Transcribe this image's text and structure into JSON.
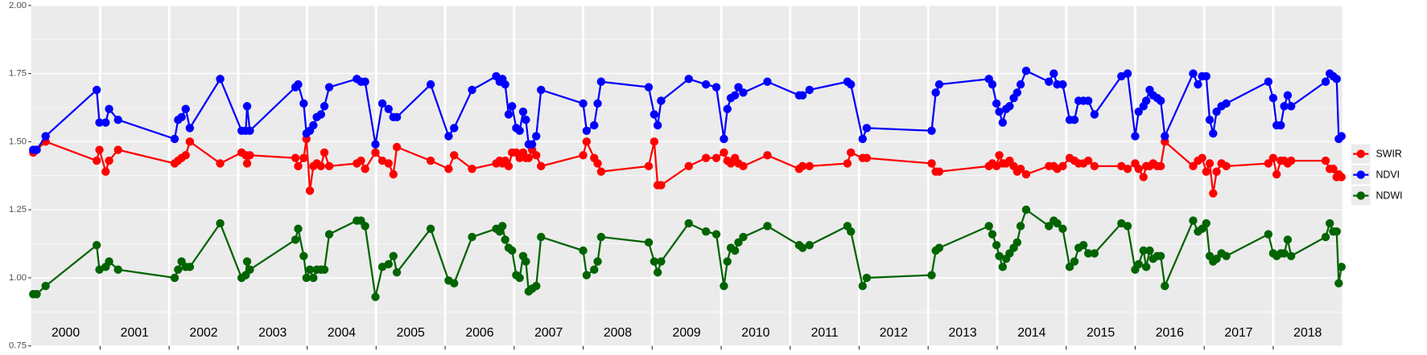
{
  "chart_data": {
    "type": "line",
    "x": [
      2000.03,
      2000.08,
      2000.21,
      2000.95,
      2000.99,
      2001.08,
      2001.13,
      2001.26,
      2002.08,
      2002.13,
      2002.18,
      2002.24,
      2002.3,
      2002.74,
      2003.05,
      2003.11,
      2003.13,
      2003.17,
      2003.83,
      2003.87,
      2003.95,
      2003.99,
      2004.04,
      2004.09,
      2004.14,
      2004.2,
      2004.25,
      2004.32,
      2004.72,
      2004.78,
      2004.84,
      2004.99,
      2005.09,
      2005.18,
      2005.25,
      2005.3,
      2005.79,
      2006.05,
      2006.13,
      2006.39,
      2006.74,
      2006.79,
      2006.83,
      2006.87,
      2006.92,
      2006.97,
      2007.03,
      2007.08,
      2007.13,
      2007.17,
      2007.21,
      2007.26,
      2007.32,
      2007.39,
      2008.0,
      2008.05,
      2008.16,
      2008.21,
      2008.26,
      2008.95,
      2009.03,
      2009.08,
      2009.13,
      2009.53,
      2009.78,
      2009.93,
      2010.04,
      2010.09,
      2010.14,
      2010.2,
      2010.25,
      2010.32,
      2010.67,
      2011.13,
      2011.18,
      2011.28,
      2011.83,
      2011.88,
      2012.05,
      2012.11,
      2013.05,
      2013.11,
      2013.16,
      2013.88,
      2013.93,
      2013.99,
      2014.03,
      2014.08,
      2014.13,
      2014.18,
      2014.24,
      2014.29,
      2014.34,
      2014.42,
      2014.75,
      2014.82,
      2014.87,
      2014.95,
      2015.05,
      2015.12,
      2015.18,
      2015.25,
      2015.32,
      2015.41,
      2015.8,
      2015.89,
      2016.0,
      2016.05,
      2016.12,
      2016.16,
      2016.21,
      2016.26,
      2016.32,
      2016.37,
      2016.43,
      2016.84,
      2016.91,
      2016.97,
      2017.03,
      2017.08,
      2017.13,
      2017.18,
      2017.25,
      2017.32,
      2017.93,
      2018.0,
      2018.05,
      2018.11,
      2018.16,
      2018.21,
      2018.26,
      2018.76,
      2018.82,
      2018.87,
      2018.92,
      2018.95,
      2018.99
    ],
    "series": [
      {
        "name": "SWIR",
        "color": "#ff0000",
        "values": [
          1.46,
          1.47,
          1.5,
          1.43,
          1.47,
          1.39,
          1.43,
          1.47,
          1.42,
          1.43,
          1.44,
          1.45,
          1.5,
          1.42,
          1.46,
          1.45,
          1.42,
          1.45,
          1.44,
          1.41,
          1.44,
          1.51,
          1.32,
          1.41,
          1.42,
          1.41,
          1.46,
          1.41,
          1.42,
          1.43,
          1.4,
          1.46,
          1.43,
          1.42,
          1.38,
          1.48,
          1.43,
          1.4,
          1.45,
          1.4,
          1.42,
          1.43,
          1.42,
          1.43,
          1.41,
          1.46,
          1.46,
          1.44,
          1.46,
          1.44,
          1.44,
          1.47,
          1.45,
          1.41,
          1.45,
          1.5,
          1.44,
          1.42,
          1.39,
          1.41,
          1.5,
          1.34,
          1.34,
          1.41,
          1.44,
          1.44,
          1.46,
          1.43,
          1.42,
          1.44,
          1.42,
          1.41,
          1.45,
          1.4,
          1.41,
          1.41,
          1.42,
          1.46,
          1.44,
          1.44,
          1.42,
          1.39,
          1.39,
          1.41,
          1.42,
          1.41,
          1.45,
          1.42,
          1.42,
          1.43,
          1.41,
          1.39,
          1.4,
          1.38,
          1.41,
          1.41,
          1.4,
          1.41,
          1.44,
          1.43,
          1.42,
          1.42,
          1.43,
          1.41,
          1.41,
          1.4,
          1.42,
          1.4,
          1.37,
          1.41,
          1.41,
          1.42,
          1.41,
          1.41,
          1.5,
          1.41,
          1.43,
          1.44,
          1.39,
          1.42,
          1.31,
          1.39,
          1.42,
          1.41,
          1.42,
          1.44,
          1.38,
          1.43,
          1.43,
          1.42,
          1.43,
          1.43,
          1.4,
          1.4,
          1.37,
          1.38,
          1.37
        ]
      },
      {
        "name": "NDVI",
        "color": "#0000ff",
        "values": [
          1.47,
          1.47,
          1.52,
          1.69,
          1.57,
          1.57,
          1.62,
          1.58,
          1.51,
          1.58,
          1.59,
          1.62,
          1.55,
          1.73,
          1.54,
          1.54,
          1.63,
          1.54,
          1.7,
          1.71,
          1.64,
          1.53,
          1.54,
          1.56,
          1.59,
          1.6,
          1.63,
          1.7,
          1.73,
          1.72,
          1.72,
          1.49,
          1.64,
          1.62,
          1.59,
          1.59,
          1.71,
          1.52,
          1.55,
          1.69,
          1.74,
          1.72,
          1.73,
          1.71,
          1.6,
          1.63,
          1.55,
          1.54,
          1.61,
          1.58,
          1.49,
          1.49,
          1.52,
          1.69,
          1.64,
          1.54,
          1.56,
          1.64,
          1.72,
          1.7,
          1.6,
          1.56,
          1.65,
          1.73,
          1.71,
          1.7,
          1.51,
          1.62,
          1.66,
          1.67,
          1.7,
          1.68,
          1.72,
          1.67,
          1.67,
          1.69,
          1.72,
          1.71,
          1.51,
          1.55,
          1.54,
          1.68,
          1.71,
          1.73,
          1.71,
          1.64,
          1.61,
          1.57,
          1.62,
          1.63,
          1.66,
          1.68,
          1.71,
          1.76,
          1.72,
          1.75,
          1.71,
          1.71,
          1.58,
          1.58,
          1.65,
          1.65,
          1.65,
          1.6,
          1.74,
          1.75,
          1.52,
          1.61,
          1.63,
          1.65,
          1.69,
          1.67,
          1.66,
          1.65,
          1.52,
          1.75,
          1.71,
          1.74,
          1.74,
          1.58,
          1.53,
          1.61,
          1.63,
          1.64,
          1.72,
          1.66,
          1.56,
          1.56,
          1.63,
          1.67,
          1.63,
          1.72,
          1.75,
          1.74,
          1.73,
          1.51,
          1.52
        ]
      },
      {
        "name": "NDWI",
        "color": "#006400",
        "values": [
          0.94,
          0.94,
          0.97,
          1.12,
          1.03,
          1.04,
          1.06,
          1.03,
          1.0,
          1.03,
          1.06,
          1.04,
          1.04,
          1.2,
          1.0,
          1.01,
          1.06,
          1.03,
          1.14,
          1.18,
          1.08,
          1.0,
          1.03,
          1.0,
          1.03,
          1.03,
          1.03,
          1.16,
          1.21,
          1.21,
          1.19,
          0.93,
          1.04,
          1.05,
          1.08,
          1.02,
          1.18,
          0.99,
          0.98,
          1.15,
          1.18,
          1.17,
          1.19,
          1.14,
          1.11,
          1.1,
          1.01,
          1.0,
          1.08,
          1.06,
          0.95,
          0.96,
          0.97,
          1.15,
          1.1,
          1.01,
          1.03,
          1.06,
          1.15,
          1.13,
          1.06,
          1.02,
          1.06,
          1.2,
          1.17,
          1.16,
          0.97,
          1.06,
          1.11,
          1.1,
          1.13,
          1.15,
          1.19,
          1.12,
          1.11,
          1.12,
          1.19,
          1.17,
          0.97,
          1.0,
          1.01,
          1.1,
          1.11,
          1.19,
          1.16,
          1.12,
          1.08,
          1.04,
          1.07,
          1.09,
          1.11,
          1.13,
          1.19,
          1.25,
          1.19,
          1.21,
          1.2,
          1.18,
          1.04,
          1.06,
          1.11,
          1.12,
          1.09,
          1.09,
          1.2,
          1.19,
          1.03,
          1.05,
          1.1,
          1.04,
          1.1,
          1.07,
          1.08,
          1.08,
          0.97,
          1.21,
          1.17,
          1.18,
          1.2,
          1.08,
          1.06,
          1.07,
          1.09,
          1.08,
          1.16,
          1.09,
          1.08,
          1.09,
          1.09,
          1.14,
          1.08,
          1.15,
          1.2,
          1.17,
          1.17,
          0.98,
          1.04
        ]
      }
    ],
    "xlim": [
      2000,
      2019
    ],
    "xticks": [
      2001,
      2002,
      2003,
      2004,
      2005,
      2006,
      2007,
      2008,
      2009,
      2010,
      2011,
      2012,
      2013,
      2014,
      2015,
      2016,
      2017,
      2018
    ],
    "ylim": [
      0.75,
      2.0
    ],
    "yticks": [
      {
        "value": 0.75,
        "label": "0.75"
      },
      {
        "value": 1.0,
        "label": "1.00"
      },
      {
        "value": 1.25,
        "label": "1.25"
      },
      {
        "value": 1.5,
        "label": "1.50"
      },
      {
        "value": 1.75,
        "label": "1.75"
      },
      {
        "value": 2.0,
        "label": "2.00"
      }
    ],
    "annotations": [
      {
        "x": 2000.5,
        "text": "2000"
      },
      {
        "x": 2001.5,
        "text": "2001"
      },
      {
        "x": 2002.5,
        "text": "2002"
      },
      {
        "x": 2003.5,
        "text": "2003"
      },
      {
        "x": 2004.5,
        "text": "2004"
      },
      {
        "x": 2005.5,
        "text": "2005"
      },
      {
        "x": 2006.5,
        "text": "2006"
      },
      {
        "x": 2007.5,
        "text": "2007"
      },
      {
        "x": 2008.5,
        "text": "2008"
      },
      {
        "x": 2009.5,
        "text": "2009"
      },
      {
        "x": 2010.5,
        "text": "2010"
      },
      {
        "x": 2011.5,
        "text": "2011"
      },
      {
        "x": 2012.5,
        "text": "2012"
      },
      {
        "x": 2013.5,
        "text": "2013"
      },
      {
        "x": 2014.5,
        "text": "2014"
      },
      {
        "x": 2015.5,
        "text": "2015"
      },
      {
        "x": 2016.5,
        "text": "2016"
      },
      {
        "x": 2017.5,
        "text": "2017"
      },
      {
        "x": 2018.5,
        "text": "2018"
      }
    ],
    "grid": true,
    "legend": "right"
  }
}
